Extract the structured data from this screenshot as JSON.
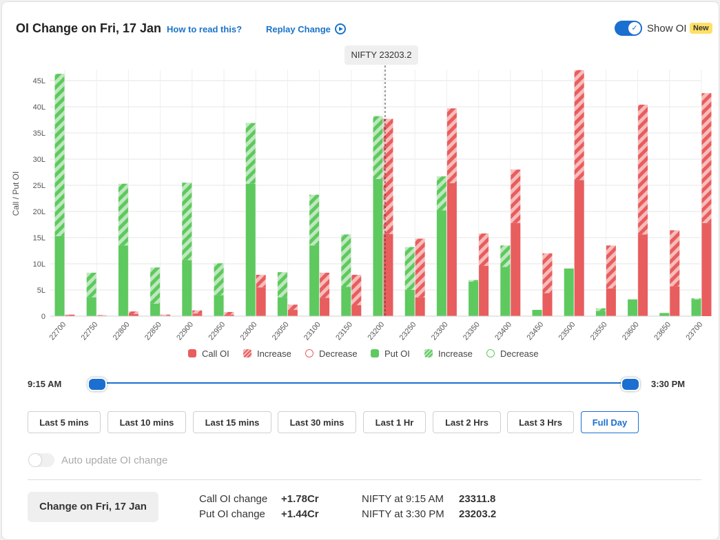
{
  "header": {
    "title": "OI Change on Fri, 17 Jan",
    "how_to_read": "How to read this?",
    "replay": "Replay Change",
    "show_oi_label": "Show OI",
    "new_badge": "New"
  },
  "spot_label": "NIFTY 23203.2",
  "chart_data": {
    "type": "bar",
    "ylabel": "Call / Put OI",
    "ylim": [
      0,
      47
    ],
    "yticks": [
      0,
      5,
      10,
      15,
      20,
      25,
      30,
      35,
      40,
      45
    ],
    "ytick_labels": [
      "0",
      "5L",
      "10L",
      "15L",
      "20L",
      "25L",
      "30L",
      "35L",
      "40L",
      "45L"
    ],
    "spot_strike": 23203.2,
    "categories": [
      "22700",
      "22750",
      "22800",
      "22850",
      "22900",
      "22950",
      "23000",
      "23050",
      "23100",
      "23150",
      "23200",
      "23250",
      "23300",
      "23350",
      "23400",
      "23450",
      "23500",
      "23550",
      "23600",
      "23650",
      "23700"
    ],
    "series": [
      {
        "name": "Put OI",
        "values": [
          15.3,
          3.6,
          13.5,
          2.4,
          10.7,
          4.0,
          25.3,
          3.6,
          13.5,
          5.6,
          26.2,
          5.0,
          20.2,
          6.6,
          9.4,
          1.2,
          9.1,
          1.0,
          3.2,
          0.6,
          3.2
        ]
      },
      {
        "name": "Increase",
        "values": [
          31.0,
          4.7,
          11.8,
          6.9,
          14.8,
          6.1,
          11.6,
          4.8,
          9.7,
          10.0,
          12.0,
          8.2,
          6.5,
          0.3,
          4.1,
          0.0,
          0.0,
          0.5,
          0.0,
          0.0,
          0.2
        ]
      },
      {
        "name": "Call OI",
        "values": [
          0.2,
          0.1,
          0.4,
          0.1,
          0.5,
          0.3,
          5.5,
          1.2,
          3.5,
          2.1,
          15.7,
          3.6,
          25.4,
          9.6,
          17.8,
          4.4,
          26.0,
          5.3,
          15.6,
          5.7,
          17.8
        ]
      },
      {
        "name": "Increase",
        "values": [
          0.1,
          0.1,
          0.5,
          0.2,
          0.6,
          0.5,
          2.4,
          1.0,
          4.8,
          5.8,
          22.0,
          11.2,
          14.3,
          6.2,
          10.2,
          7.6,
          21.0,
          8.2,
          24.8,
          10.7,
          24.8
        ]
      }
    ]
  },
  "legend": [
    {
      "label": "Call OI",
      "kind": "call"
    },
    {
      "label": "Increase",
      "kind": "call-inc"
    },
    {
      "label": "Decrease",
      "kind": "call-dec"
    },
    {
      "label": "Put OI",
      "kind": "put"
    },
    {
      "label": "Increase",
      "kind": "put-inc"
    },
    {
      "label": "Decrease",
      "kind": "put-dec"
    }
  ],
  "slider": {
    "start": "9:15 AM",
    "end": "3:30 PM"
  },
  "ranges": [
    "Last 5 mins",
    "Last 10 mins",
    "Last 15 mins",
    "Last 30 mins",
    "Last 1 Hr",
    "Last 2 Hrs",
    "Last 3 Hrs",
    "Full Day"
  ],
  "active_range": "Full Day",
  "auto_update_label": "Auto update OI change",
  "footer": {
    "change_button": "Change on Fri, 17 Jan",
    "call_label": "Call OI change",
    "call_value": "+1.78Cr",
    "put_label": "Put OI change",
    "put_value": "+1.44Cr",
    "nifty_start_label": "NIFTY at 9:15 AM",
    "nifty_start_value": "23311.8",
    "nifty_end_label": "NIFTY at 3:30 PM",
    "nifty_end_value": "23203.2"
  },
  "colors": {
    "call": "#e85d5d",
    "call_light": "#f7bcbc",
    "put": "#5ec95e",
    "put_light": "#bfe8bf",
    "accent": "#1a6fd0"
  }
}
